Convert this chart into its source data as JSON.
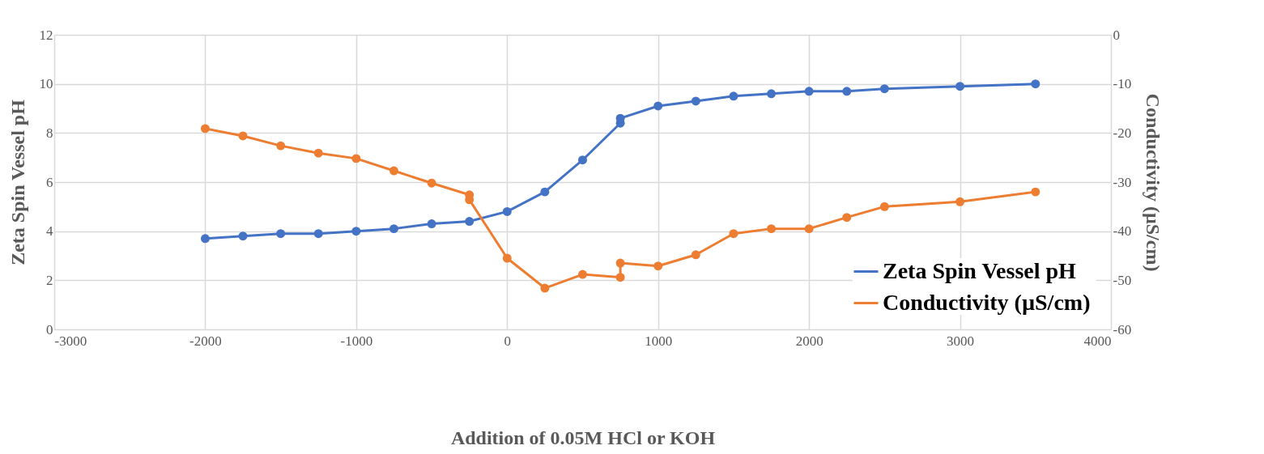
{
  "chart_data": {
    "type": "line",
    "xlabel": "Addition of 0.05M HCl or KOH",
    "ylabel": "Zeta Spin Vessel pH",
    "y2label": "Conductivity  (µS/cm)",
    "xlim": [
      -3000,
      4000
    ],
    "xticks": [
      -3000,
      -2000,
      -1000,
      0,
      1000,
      2000,
      3000,
      4000
    ],
    "ylim": [
      0,
      12
    ],
    "yticks": [
      0,
      2,
      4,
      6,
      8,
      10,
      12
    ],
    "y2lim": [
      -60,
      0
    ],
    "y2ticks": [
      -60,
      -50,
      -40,
      -30,
      -20,
      -10,
      0
    ],
    "grid": true,
    "legend": "bottom right",
    "marker": "circle",
    "line_style": "solid",
    "series": [
      {
        "name": "Zeta Spin Vessel pH",
        "color": "#4472c4",
        "x": [
          -2000,
          -1750,
          -1500,
          -1250,
          -1000,
          -750,
          -500,
          -250,
          0,
          250,
          500,
          750,
          750,
          1000,
          1250,
          1500,
          1750,
          2000,
          2250,
          2500,
          3000,
          3500
        ],
        "values": [
          3.7,
          3.8,
          3.9,
          3.9,
          4.0,
          4.1,
          4.3,
          4.4,
          4.8,
          5.6,
          6.9,
          8.4,
          8.6,
          9.1,
          9.3,
          9.5,
          9.6,
          9.7,
          9.7,
          9.8,
          9.9,
          10.0
        ]
      },
      {
        "name": "Conductivity  (µS/cm)",
        "color": "#ed7d31",
        "axis": "y2",
        "x": [
          -2000,
          -1750,
          -1500,
          -1250,
          -1000,
          -750,
          -500,
          -250,
          -250,
          0,
          250,
          500,
          750,
          750,
          1000,
          1250,
          1500,
          1750,
          2000,
          2250,
          2500,
          3000,
          3500
        ],
        "values": [
          -19.1,
          -20.6,
          -22.6,
          -24.1,
          -25.2,
          -27.7,
          -30.2,
          -32.6,
          -33.6,
          -45.5,
          -51.6,
          -48.8,
          -49.4,
          -46.5,
          -47.1,
          -44.8,
          -40.5,
          -39.5,
          -39.5,
          -37.2,
          -35.0,
          -34.0,
          -32.0
        ]
      }
    ]
  }
}
